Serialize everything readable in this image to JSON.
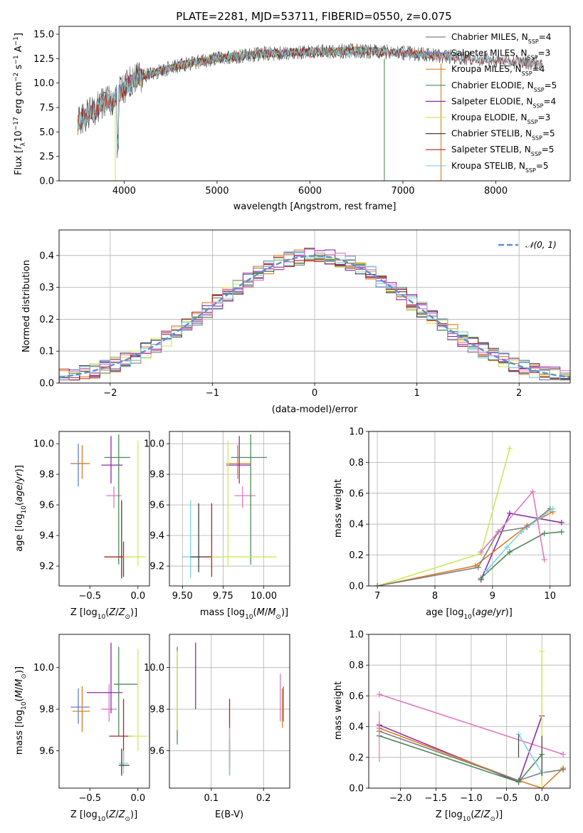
{
  "figure": {
    "title": "PLATE=2281, MJD=53711, FIBERID=0550, z=0.075"
  },
  "chart_data": [
    {
      "id": "spectrum",
      "type": "line",
      "title": "PLATE=2281, MJD=53711, FIBERID=0550, z=0.075",
      "xlabel": "wavelength [Angstrom, rest frame]",
      "ylabel": "Flux [f_λ 10^-17 erg cm^-2 s^-1 A^-1]",
      "xlim": [
        3300,
        8800
      ],
      "ylim": [
        0,
        15.8
      ],
      "xticks": [
        4000,
        5000,
        6000,
        7000,
        8000
      ],
      "yticks": [
        0.0,
        2.5,
        5.0,
        7.5,
        10.0,
        12.5,
        15.0
      ],
      "grid": false,
      "legend_position": "right",
      "observed_trend": {
        "x": [
          3500,
          3700,
          3900,
          4100,
          4300,
          4600,
          5000,
          5500,
          6000,
          6500,
          7000,
          7500,
          8000,
          8500
        ],
        "y": [
          5.8,
          7.5,
          8.5,
          10.4,
          11.0,
          11.8,
          12.5,
          13.0,
          13.2,
          13.3,
          13.1,
          12.7,
          12.3,
          12.0
        ]
      },
      "series": [
        {
          "name": "Chabrier MILES, N_SSP=4",
          "color": "#808080",
          "x_range": [
            3500,
            7400
          ]
        },
        {
          "name": "Salpeter MILES, N_SSP=3",
          "color": "#5f7fc6",
          "x_range": [
            3500,
            7400
          ]
        },
        {
          "name": "Kroupa MILES, N_SSP=4",
          "color": "#e07b1f",
          "x_range": [
            3500,
            7400
          ]
        },
        {
          "name": "Chabrier ELODIE, N_SSP=5",
          "color": "#4e8a55",
          "x_range": [
            3900,
            6800
          ]
        },
        {
          "name": "Salpeter ELODIE, N_SSP=4",
          "color": "#8b2aa8",
          "x_range": [
            3900,
            6800
          ]
        },
        {
          "name": "Kroupa ELODIE, N_SSP=3",
          "color": "#cfe85a",
          "x_range": [
            3900,
            6800
          ]
        },
        {
          "name": "Chabrier STELIB, N_SSP=5",
          "color": "#404040",
          "x_range": [
            3500,
            8500
          ]
        },
        {
          "name": "Salpeter STELIB, N_SSP=5",
          "color": "#b22222",
          "x_range": [
            3500,
            8500
          ]
        },
        {
          "name": "Kroupa STELIB, N_SSP=5",
          "color": "#7fd3e0",
          "x_range": [
            3500,
            8500
          ]
        }
      ],
      "legend": [
        {
          "label": "Chabrier MILES, N",
          "sub": "SSP",
          "tail": "=4",
          "color": "#808080"
        },
        {
          "label": "Salpeter MILES, N",
          "sub": "SSP",
          "tail": "=3",
          "color": "#5f7fc6"
        },
        {
          "label": "Kroupa MILES, N",
          "sub": "SSP",
          "tail": "=4",
          "color": "#e07b1f"
        },
        {
          "label": "Chabrier ELODIE, N",
          "sub": "SSP",
          "tail": "=5",
          "color": "#4e8a55"
        },
        {
          "label": "Salpeter ELODIE, N",
          "sub": "SSP",
          "tail": "=4",
          "color": "#8b2aa8"
        },
        {
          "label": "Kroupa ELODIE, N",
          "sub": "SSP",
          "tail": "=3",
          "color": "#cfe85a"
        },
        {
          "label": "Chabrier STELIB, N",
          "sub": "SSP",
          "tail": "=5",
          "color": "#404040"
        },
        {
          "label": "Salpeter STELIB, N",
          "sub": "SSP",
          "tail": "=5",
          "color": "#b22222"
        },
        {
          "label": "Kroupa STELIB, N",
          "sub": "SSP",
          "tail": "=5",
          "color": "#7fd3e0"
        }
      ]
    },
    {
      "id": "residual-hist",
      "type": "line",
      "xlabel": "(data-model)/error",
      "ylabel": "Normed distribution",
      "xlim": [
        -2.5,
        2.5
      ],
      "ylim": [
        0,
        0.48
      ],
      "xticks": [
        -2,
        -1,
        0,
        1,
        2
      ],
      "yticks": [
        0.0,
        0.1,
        0.2,
        0.3,
        0.4
      ],
      "grid": true,
      "legend_position": "top-right",
      "reference": {
        "name": "𝒩(0, 1)",
        "color": "#5b8fd6",
        "mean": 0,
        "sigma": 1
      },
      "bin_width": 0.1,
      "bin_start": -2.5,
      "histogram_colors": [
        "#808080",
        "#5f7fc6",
        "#e07b1f",
        "#4e8a55",
        "#8b2aa8",
        "#cfe85a",
        "#404040",
        "#b22222",
        "#7fd3e0",
        "#e377c2"
      ]
    },
    {
      "id": "age-vs-Z",
      "type": "scatter",
      "xlabel": "Z [log10(Z/Z⊙)]",
      "ylabel": "age [log10(age/yr)]",
      "xlim": [
        -0.82,
        0.12
      ],
      "ylim": [
        9.07,
        10.08
      ],
      "xticks": [
        -0.5,
        0.0
      ],
      "yticks": [
        9.2,
        9.4,
        9.6,
        9.8,
        10.0
      ],
      "grid": false,
      "errorbars": [
        {
          "x": -0.62,
          "xerr": [
            0.08,
            0.12
          ],
          "y": 9.87,
          "yerr": [
            0.15,
            0.13
          ],
          "color": "#5f7fc6"
        },
        {
          "x": -0.58,
          "xerr": [
            0.1,
            0.08
          ],
          "y": 9.87,
          "yerr": [
            0.1,
            0.12
          ],
          "color": "#e07b1f"
        },
        {
          "x": -0.25,
          "xerr": [
            0.08,
            0.08
          ],
          "y": 9.66,
          "yerr": [
            0.08,
            0.06
          ],
          "color": "#e377c2"
        },
        {
          "x": -0.28,
          "xerr": [
            0.1,
            0.12
          ],
          "y": 9.86,
          "yerr": [
            0.12,
            0.19
          ],
          "color": "#8b2aa8"
        },
        {
          "x": -0.2,
          "xerr": [
            0.15,
            0.12
          ],
          "y": 9.91,
          "yerr": [
            0.7,
            0.15
          ],
          "color": "#4e8a55"
        },
        {
          "x": -0.17,
          "xerr": [
            0.02,
            0.02
          ],
          "y": 9.26,
          "yerr": [
            0.14,
            0.37
          ],
          "color": "#404040"
        },
        {
          "x": -0.15,
          "xerr": [
            0.2,
            0.08
          ],
          "y": 9.26,
          "yerr": [
            0.13,
            0.1
          ],
          "color": "#b22222"
        },
        {
          "x": 0.0,
          "xerr": [
            0.15,
            0.08
          ],
          "y": 9.26,
          "yerr": [
            0.06,
            0.76
          ],
          "color": "#cfe85a"
        }
      ]
    },
    {
      "id": "age-vs-mass",
      "type": "scatter",
      "xlabel": "mass [log10(M/M⊙)]",
      "ylabel": "",
      "xlim": [
        9.42,
        10.16
      ],
      "ylim": [
        9.07,
        10.08
      ],
      "xticks": [
        9.5,
        9.75,
        10.0
      ],
      "yticks": [
        9.2,
        9.4,
        9.6,
        9.8,
        10.0
      ],
      "grid": true,
      "errorbars": [
        {
          "x": 9.55,
          "xerr": [
            0.05,
            0.06
          ],
          "y": 9.26,
          "yerr": [
            0.14,
            0.37
          ],
          "color": "#7fd3e0"
        },
        {
          "x": 9.6,
          "xerr": [
            0.05,
            0.07
          ],
          "y": 9.26,
          "yerr": [
            0.1,
            0.35
          ],
          "color": "#404040"
        },
        {
          "x": 9.68,
          "xerr": [
            0.05,
            0.05
          ],
          "y": 9.26,
          "yerr": [
            0.13,
            0.35
          ],
          "color": "#b22222"
        },
        {
          "x": 9.87,
          "xerr": [
            0.05,
            0.08
          ],
          "y": 9.66,
          "yerr": [
            0.08,
            0.06
          ],
          "color": "#e377c2"
        },
        {
          "x": 9.84,
          "xerr": [
            0.07,
            0.08
          ],
          "y": 9.87,
          "yerr": [
            0.1,
            0.12
          ],
          "color": "#e07b1f"
        },
        {
          "x": 9.85,
          "xerr": [
            0.08,
            0.07
          ],
          "y": 9.86,
          "yerr": [
            0.12,
            0.19
          ],
          "color": "#8b2aa8"
        },
        {
          "x": 9.92,
          "xerr": [
            0.12,
            0.1
          ],
          "y": 9.91,
          "yerr": [
            0.7,
            0.15
          ],
          "color": "#4e8a55"
        },
        {
          "x": 9.78,
          "xerr": [
            0.1,
            0.3
          ],
          "y": 9.26,
          "yerr": [
            0.06,
            0.76
          ],
          "color": "#cfe85a"
        }
      ]
    },
    {
      "id": "massweight-vs-age",
      "type": "line",
      "xlabel": "age [log10(age/yr)]",
      "ylabel": "mass weight",
      "xlim": [
        6.85,
        10.35
      ],
      "ylim": [
        0,
        1.0
      ],
      "xticks": [
        7,
        8,
        9,
        10
      ],
      "yticks": [
        0.0,
        0.2,
        0.4,
        0.6,
        0.8,
        1.0
      ],
      "grid": true,
      "series": [
        {
          "name": "Kroupa ELODIE",
          "color": "#cfe85a",
          "x": [
            7.0,
            8.8,
            9.3
          ],
          "y": [
            0.0,
            0.21,
            0.89
          ]
        },
        {
          "name": "Salpeter ELODIE",
          "color": "#8b2aa8",
          "x": [
            8.8,
            9.3,
            10.2
          ],
          "y": [
            0.04,
            0.47,
            0.41
          ]
        },
        {
          "name": "Kroupa MILES",
          "color": "#e07b1f",
          "x": [
            7.0,
            8.7,
            9.6,
            10.05
          ],
          "y": [
            0.0,
            0.13,
            0.39,
            0.48
          ]
        },
        {
          "name": "Chabrier MILES",
          "color": "#808080",
          "x": [
            7.0,
            8.75,
            9.1,
            9.6,
            10.0
          ],
          "y": [
            0.0,
            0.12,
            0.35,
            0.38,
            0.5
          ]
        },
        {
          "name": "Chabrier ELODIE",
          "color": "#4e8a55",
          "x": [
            8.8,
            9.3,
            9.9,
            10.2
          ],
          "y": [
            0.05,
            0.22,
            0.34,
            0.35
          ]
        },
        {
          "name": "Kroupa STELIB",
          "color": "#7fd3e0",
          "x": [
            8.9,
            9.25,
            9.5,
            10.05
          ],
          "y": [
            0.1,
            0.25,
            0.35,
            0.5
          ]
        },
        {
          "name": "pink",
          "color": "#e377c2",
          "x": [
            8.8,
            9.7,
            9.9
          ],
          "y": [
            0.22,
            0.61,
            0.17
          ]
        }
      ]
    },
    {
      "id": "mass-vs-Z",
      "type": "scatter",
      "xlabel": "Z [log10(Z/Z⊙)]",
      "ylabel": "mass [log10(M/M⊙)]",
      "xlim": [
        -0.82,
        0.12
      ],
      "ylim": [
        9.42,
        10.16
      ],
      "xticks": [
        -0.5,
        0.0
      ],
      "yticks": [
        9.6,
        9.8,
        10.0
      ],
      "grid": false,
      "errorbars": [
        {
          "x": -0.62,
          "xerr": [
            0.08,
            0.12
          ],
          "y": 9.81,
          "yerr": [
            0.08,
            0.09
          ],
          "color": "#5f7fc6"
        },
        {
          "x": -0.58,
          "xerr": [
            0.1,
            0.08
          ],
          "y": 9.79,
          "yerr": [
            0.1,
            0.12
          ],
          "color": "#e07b1f"
        },
        {
          "x": -0.3,
          "xerr": [
            0.08,
            0.08
          ],
          "y": 9.8,
          "yerr": [
            0.06,
            0.12
          ],
          "color": "#e377c2"
        },
        {
          "x": -0.28,
          "xerr": [
            0.25,
            0.12
          ],
          "y": 9.88,
          "yerr": [
            0.1,
            0.24
          ],
          "color": "#8b2aa8"
        },
        {
          "x": -0.2,
          "xerr": [
            0.05,
            0.2
          ],
          "y": 9.92,
          "yerr": [
            0.25,
            0.18
          ],
          "color": "#4e8a55"
        },
        {
          "x": -0.15,
          "xerr": [
            0.15,
            0.1
          ],
          "y": 9.67,
          "yerr": [
            0.15,
            0.18
          ],
          "color": "#b22222"
        },
        {
          "x": -0.15,
          "xerr": [
            0.05,
            0.05
          ],
          "y": 9.54,
          "yerr": [
            0.05,
            0.06
          ],
          "color": "#7fd3e0"
        },
        {
          "x": -0.17,
          "xerr": [
            0.03,
            0.08
          ],
          "y": 9.53,
          "yerr": [
            0.05,
            0.08
          ],
          "color": "#404040"
        },
        {
          "x": 0.0,
          "xerr": [
            0.1,
            0.1
          ],
          "y": 9.67,
          "yerr": [
            0.07,
            0.42
          ],
          "color": "#cfe85a"
        }
      ]
    },
    {
      "id": "mass-vs-EBV",
      "type": "scatter",
      "xlabel": "E(B-V)",
      "ylabel": "",
      "xlim": [
        0.02,
        0.25
      ],
      "ylim": [
        9.42,
        10.16
      ],
      "xticks": [
        0.1,
        0.2
      ],
      "yticks": [
        9.6,
        9.8,
        10.0
      ],
      "grid": true,
      "errorbars": [
        {
          "x": 0.035,
          "xerr": [
            0,
            0
          ],
          "y": 9.86,
          "yerr": [
            0.23,
            0.24
          ],
          "color": "#4e8a55"
        },
        {
          "x": 0.035,
          "xerr": [
            0,
            0
          ],
          "y": 9.9,
          "yerr": [
            0.2,
            0.18
          ],
          "color": "#cfe85a"
        },
        {
          "x": 0.07,
          "xerr": [
            0,
            0
          ],
          "y": 9.95,
          "yerr": [
            0.15,
            0.17
          ],
          "color": "#8b2aa8"
        },
        {
          "x": 0.135,
          "xerr": [
            0,
            0
          ],
          "y": 9.67,
          "yerr": [
            0.15,
            0.18
          ],
          "color": "#b22222"
        },
        {
          "x": 0.135,
          "xerr": [
            0,
            0
          ],
          "y": 9.56,
          "yerr": [
            0.08,
            0.09
          ],
          "color": "#404040"
        },
        {
          "x": 0.135,
          "xerr": [
            0,
            0
          ],
          "y": 9.56,
          "yerr": [
            0.08,
            0.15
          ],
          "color": "#7fd3e0"
        },
        {
          "x": 0.232,
          "xerr": [
            0,
            0
          ],
          "y": 9.84,
          "yerr": [
            0.1,
            0.13
          ],
          "color": "#e377c2"
        },
        {
          "x": 0.236,
          "xerr": [
            0,
            0
          ],
          "y": 9.8,
          "yerr": [
            0.09,
            0.1
          ],
          "color": "#e07b1f"
        },
        {
          "x": 0.238,
          "xerr": [
            0,
            0
          ],
          "y": 9.82,
          "yerr": [
            0.08,
            0.09
          ],
          "color": "#5f7fc6"
        }
      ]
    },
    {
      "id": "massweight-vs-Z",
      "type": "line",
      "xlabel": "Z [log10(Z/Z⊙)]",
      "ylabel": "mass weight",
      "xlim": [
        -2.45,
        0.4
      ],
      "ylim": [
        0,
        1.0
      ],
      "xticks": [
        -2.0,
        -1.5,
        -1.0,
        -0.5,
        0.0
      ],
      "yticks": [
        0.0,
        0.2,
        0.4,
        0.6,
        0.8,
        1.0
      ],
      "grid": true,
      "series": [
        {
          "name": "pink",
          "color": "#e377c2",
          "x": [
            -2.3,
            0.3
          ],
          "y": [
            0.61,
            0.22
          ]
        },
        {
          "name": "Salpeter ELODIE",
          "color": "#8b2aa8",
          "x": [
            -2.3,
            -0.33,
            0.0
          ],
          "y": [
            0.41,
            0.04,
            0.47
          ]
        },
        {
          "name": "Kroupa MILES",
          "color": "#e07b1f",
          "x": [
            -2.3,
            -0.33,
            0.0,
            0.3
          ],
          "y": [
            0.39,
            0.05,
            0.0,
            0.13
          ]
        },
        {
          "name": "Chabrier MILES",
          "color": "#808080",
          "x": [
            -2.3,
            -0.33,
            0.0,
            0.3
          ],
          "y": [
            0.37,
            0.05,
            0.1,
            0.12
          ]
        },
        {
          "name": "Chabrier ELODIE",
          "color": "#4e8a55",
          "x": [
            -2.3,
            -0.33,
            0.0
          ],
          "y": [
            0.34,
            0.04,
            0.22
          ]
        },
        {
          "name": "Kroupa ELODIE",
          "color": "#cfe85a",
          "x": [
            0.0,
            0.0
          ],
          "y": [
            0.0,
            0.89
          ]
        },
        {
          "name": "Kroupa STELIB",
          "color": "#7fd3e0",
          "x": [
            -0.33,
            0.0
          ],
          "y": [
            0.35,
            0.1
          ]
        }
      ],
      "vertical_marks": [
        {
          "x": -2.3,
          "y_range": [
            0.17,
            0.5
          ],
          "color": "#e377c2"
        },
        {
          "x": -0.33,
          "y_range": [
            0.2,
            0.35
          ],
          "color": "#404040"
        },
        {
          "x": 0.0,
          "y_range": [
            0.08,
            0.34
          ],
          "color": "#404040"
        }
      ]
    }
  ]
}
